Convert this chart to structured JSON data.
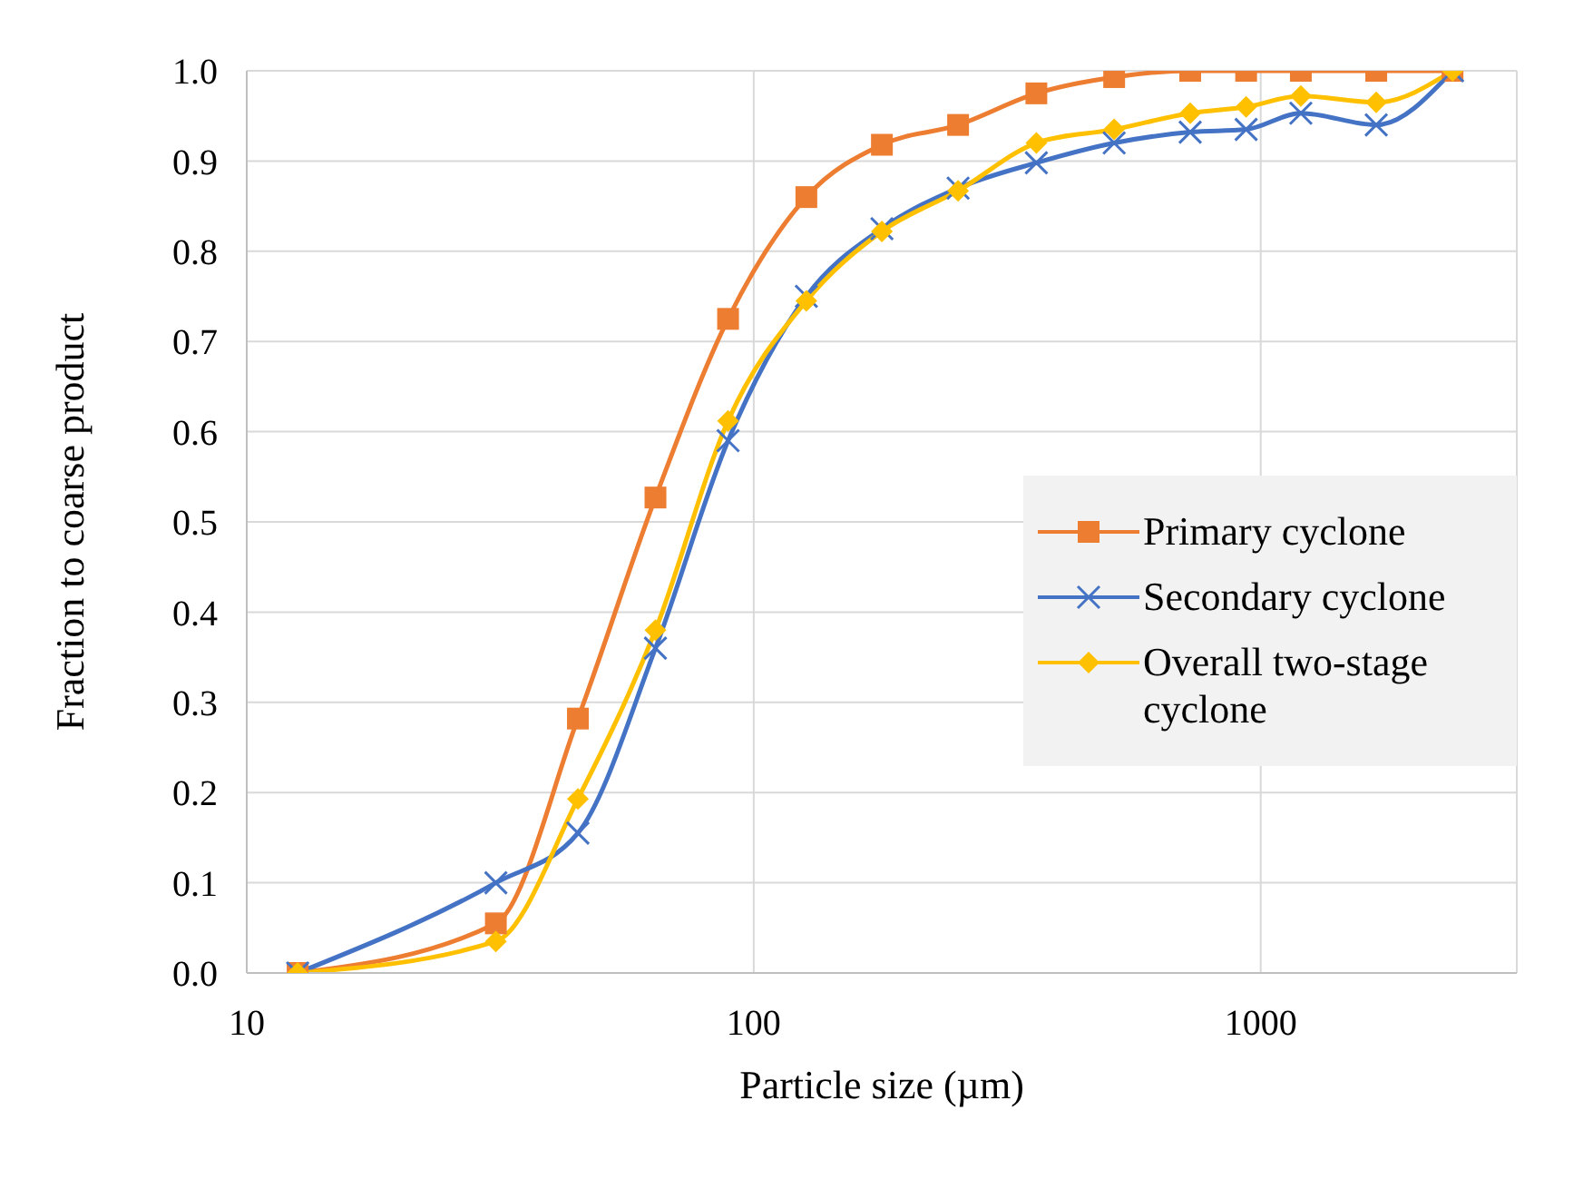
{
  "chart_data": {
    "type": "line",
    "xlabel": "Particle size (µm)",
    "ylabel": "Fraction to coarse product",
    "x": [
      12.6,
      31,
      45,
      64,
      89,
      127,
      179,
      253,
      361,
      514,
      726,
      936,
      1200,
      1690,
      2390
    ],
    "series": [
      {
        "name": "Primary cyclone",
        "color": "#ed7d31",
        "marker": "square",
        "values": [
          0,
          0.055,
          0.282,
          0.527,
          0.725,
          0.86,
          0.918,
          0.94,
          0.975,
          0.993,
          1,
          1,
          1,
          1,
          1
        ]
      },
      {
        "name": "Secondary cyclone",
        "color": "#4472c4",
        "marker": "cross",
        "values": [
          0,
          0.1,
          0.155,
          0.36,
          0.59,
          0.75,
          0.825,
          0.87,
          0.898,
          0.92,
          0.932,
          0.935,
          0.953,
          0.94,
          1
        ]
      },
      {
        "name": "Overall two-stage cyclone",
        "color": "#ffc000",
        "marker": "diamond",
        "values": [
          0,
          0.035,
          0.193,
          0.38,
          0.612,
          0.745,
          0.822,
          0.867,
          0.92,
          0.935,
          0.953,
          0.96,
          0.972,
          0.965,
          1
        ]
      }
    ],
    "log": "x",
    "xlim": [
      10,
      3200
    ],
    "xticks": [
      10,
      100,
      1000
    ],
    "ylim": [
      0,
      1
    ],
    "yticks": [
      {
        "value": 0,
        "label": "0.0"
      },
      0.1,
      0.2,
      0.3,
      0.4,
      0.5,
      0.6,
      0.7,
      0.8,
      0.9,
      {
        "value": 1,
        "label": "1.0"
      }
    ],
    "grid": true,
    "legend": "bottom right",
    "line_style": "solid"
  }
}
